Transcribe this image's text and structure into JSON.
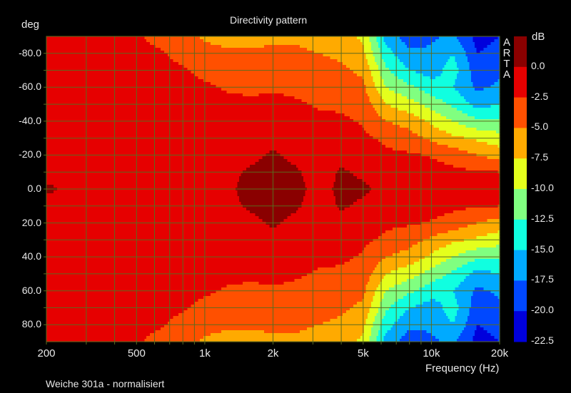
{
  "chart_data": {
    "type": "heatmap",
    "title": "Directivity pattern",
    "xlabel": "Frequency (Hz)",
    "ylabel": "deg",
    "colorbar_label": "dB",
    "watermark": "ARTA",
    "caption": "Weiche 301a - normalisiert",
    "xscale": "log",
    "xlim": [
      200,
      20000
    ],
    "ylim": [
      -90,
      90
    ],
    "x_ticks": [
      {
        "v": 200,
        "label": "200"
      },
      {
        "v": 500,
        "label": "500"
      },
      {
        "v": 1000,
        "label": "1k"
      },
      {
        "v": 2000,
        "label": "2k"
      },
      {
        "v": 5000,
        "label": "5k"
      },
      {
        "v": 10000,
        "label": "10k"
      },
      {
        "v": 20000,
        "label": "20k"
      }
    ],
    "y_ticks": [
      {
        "v": -80,
        "label": "-80.0"
      },
      {
        "v": -60,
        "label": "-60.0"
      },
      {
        "v": -40,
        "label": "-40.0"
      },
      {
        "v": -20,
        "label": "-20.0"
      },
      {
        "v": 0,
        "label": "0.0"
      },
      {
        "v": 20,
        "label": "20.0"
      },
      {
        "v": 40,
        "label": "40.0"
      },
      {
        "v": 60,
        "label": "60.0"
      },
      {
        "v": 80,
        "label": "80.0"
      }
    ],
    "colorbar": {
      "labels": [
        "0.0",
        "-2.5",
        "-5.0",
        "-7.5",
        "-10.0",
        "-12.5",
        "-15.0",
        "-17.5",
        "-20.0",
        "-22.5"
      ],
      "levels": [
        0,
        -2.5,
        -5,
        -7.5,
        -10,
        -12.5,
        -15,
        -17.5,
        -20,
        -22.5
      ],
      "colors": [
        "#8a0000",
        "#e60000",
        "#ff5000",
        "#ffaa00",
        "#e4ff1c",
        "#80ff80",
        "#10ffe0",
        "#00aaff",
        "#0048ff",
        "#0000dc"
      ]
    },
    "grid": true,
    "frequencies": [
      200,
      250,
      315,
      400,
      500,
      630,
      800,
      1000,
      1250,
      1600,
      2000,
      2500,
      3150,
      4000,
      5000,
      6300,
      8000,
      10000,
      12500,
      16000,
      20000
    ],
    "angles": [
      -90,
      -80,
      -70,
      -60,
      -50,
      -40,
      -30,
      -20,
      -10,
      0,
      10,
      20,
      30,
      40,
      50,
      60,
      70,
      80,
      90
    ],
    "z_by_frequency": [
      [
        -1.5,
        -1,
        -1,
        -1,
        -1,
        -1,
        -1,
        -1,
        -1,
        0.5,
        -1,
        -1,
        -1,
        -1,
        -1,
        -1,
        -1,
        -1,
        -1.5
      ],
      [
        -1.5,
        -1,
        -1,
        -1,
        -1,
        -1,
        -1,
        -1,
        -1,
        -0.5,
        -1,
        -1,
        -1,
        -1,
        -1,
        -1,
        -1,
        -1,
        -1.5
      ],
      [
        -1.5,
        -1,
        -1,
        -1,
        -1,
        -1,
        -1,
        -1,
        -1,
        -0.5,
        -1,
        -1,
        -1,
        -1,
        -1,
        -1,
        -1,
        -1,
        -1.5
      ],
      [
        -2,
        -1.5,
        -1,
        -1,
        -1,
        -1,
        -1,
        -1,
        -1,
        -0.5,
        -1,
        -1,
        -1,
        -1,
        -1,
        -1,
        -1,
        -1.5,
        -2
      ],
      [
        -2.3,
        -2,
        -1.5,
        -1,
        -1,
        -1,
        -1,
        -1,
        -1,
        -0.5,
        -1,
        -1,
        -1,
        -1,
        -1,
        -1,
        -1.5,
        -2,
        -2.3
      ],
      [
        -3,
        -2.3,
        -2,
        -1.5,
        -1,
        -1,
        -1,
        -1,
        -0.8,
        -0.5,
        -0.8,
        -1,
        -1,
        -1,
        -1,
        -1.5,
        -2,
        -2.3,
        -3
      ],
      [
        -4,
        -3,
        -2.3,
        -2,
        -1.5,
        -1,
        -1,
        -1,
        -0.8,
        -0.5,
        -0.8,
        -1,
        -1,
        -1,
        -1.5,
        -2,
        -2.3,
        -3,
        -4
      ],
      [
        -5.5,
        -4,
        -3,
        -2.2,
        -2,
        -1.5,
        -1,
        -1,
        -0.8,
        -0.5,
        -0.8,
        -1,
        -1,
        -1.5,
        -2,
        -2.2,
        -3,
        -4,
        -5.5
      ],
      [
        -6,
        -4.5,
        -3.5,
        -2.7,
        -2,
        -1.5,
        -1,
        -1,
        -0.5,
        -0.3,
        -0.5,
        -1,
        -1,
        -1.5,
        -2,
        -2.7,
        -3.5,
        -4.5,
        -6
      ],
      [
        -6,
        -4.5,
        -4,
        -3,
        -2,
        -1.5,
        -1,
        -0.5,
        0.3,
        0.5,
        0.3,
        -0.5,
        -1,
        -1.5,
        -2,
        -3,
        -4,
        -4.5,
        -6
      ],
      [
        -5.5,
        -4.5,
        -3.5,
        -2.7,
        -2,
        -1.2,
        -0.5,
        0.3,
        0.8,
        0.8,
        0.8,
        0.3,
        -0.5,
        -1.2,
        -2,
        -2.7,
        -3.5,
        -4.5,
        -5.5
      ],
      [
        -5.5,
        -4.5,
        -4,
        -3,
        -2.2,
        -1.5,
        -1,
        -0.5,
        0.3,
        0.5,
        0.3,
        -0.5,
        -1,
        -1.5,
        -2.2,
        -3,
        -4,
        -4.5,
        -5.5
      ],
      [
        -6,
        -5,
        -4,
        -3.5,
        -2.7,
        -2,
        -1.3,
        -1,
        -0.8,
        -0.5,
        -0.8,
        -1,
        -1.3,
        -2,
        -2.7,
        -3.5,
        -4,
        -5,
        -6
      ],
      [
        -6.5,
        -5.5,
        -4.5,
        -3.8,
        -3,
        -2,
        -1.2,
        -0.5,
        0.2,
        0.3,
        0.2,
        -0.5,
        -1.2,
        -2,
        -3,
        -3.8,
        -4.5,
        -5.5,
        -6.5
      ],
      [
        -8,
        -7,
        -5.5,
        -4.5,
        -3.5,
        -2.8,
        -2,
        -1,
        -0.3,
        0.3,
        -0.3,
        -1,
        -2,
        -2.8,
        -3.5,
        -4.5,
        -5.5,
        -7,
        -8
      ],
      [
        -16,
        -14,
        -12,
        -10,
        -7.5,
        -5,
        -3,
        -2,
        -1,
        -0.5,
        -1,
        -2,
        -3,
        -5,
        -7.5,
        -10,
        -12,
        -14,
        -16
      ],
      [
        -19,
        -17,
        -15,
        -12,
        -9,
        -6,
        -4,
        -2.2,
        -1.2,
        -0.5,
        -1.2,
        -2.2,
        -4,
        -6,
        -9,
        -12,
        -15,
        -17,
        -19
      ],
      [
        -18,
        -17,
        -16,
        -14,
        -11,
        -8,
        -5.5,
        -2.7,
        -1.5,
        -0.8,
        -1.5,
        -2.7,
        -5.5,
        -8,
        -11,
        -14,
        -16,
        -17,
        -18
      ],
      [
        -17,
        -15,
        -14,
        -15,
        -13,
        -10,
        -7,
        -3.5,
        -2,
        -1,
        -2,
        -3.5,
        -7,
        -10,
        -13,
        -15,
        -14,
        -15,
        -17
      ],
      [
        -21,
        -20,
        -19,
        -18,
        -16,
        -12,
        -8,
        -5,
        -2.2,
        -1,
        -2.2,
        -5,
        -8,
        -12,
        -16,
        -18,
        -19,
        -20,
        -21
      ],
      [
        -20,
        -19,
        -18,
        -17,
        -15,
        -12,
        -9,
        -6,
        -2.5,
        -1.5,
        -2.5,
        -6,
        -9,
        -12,
        -15,
        -17,
        -18,
        -19,
        -20
      ]
    ]
  }
}
